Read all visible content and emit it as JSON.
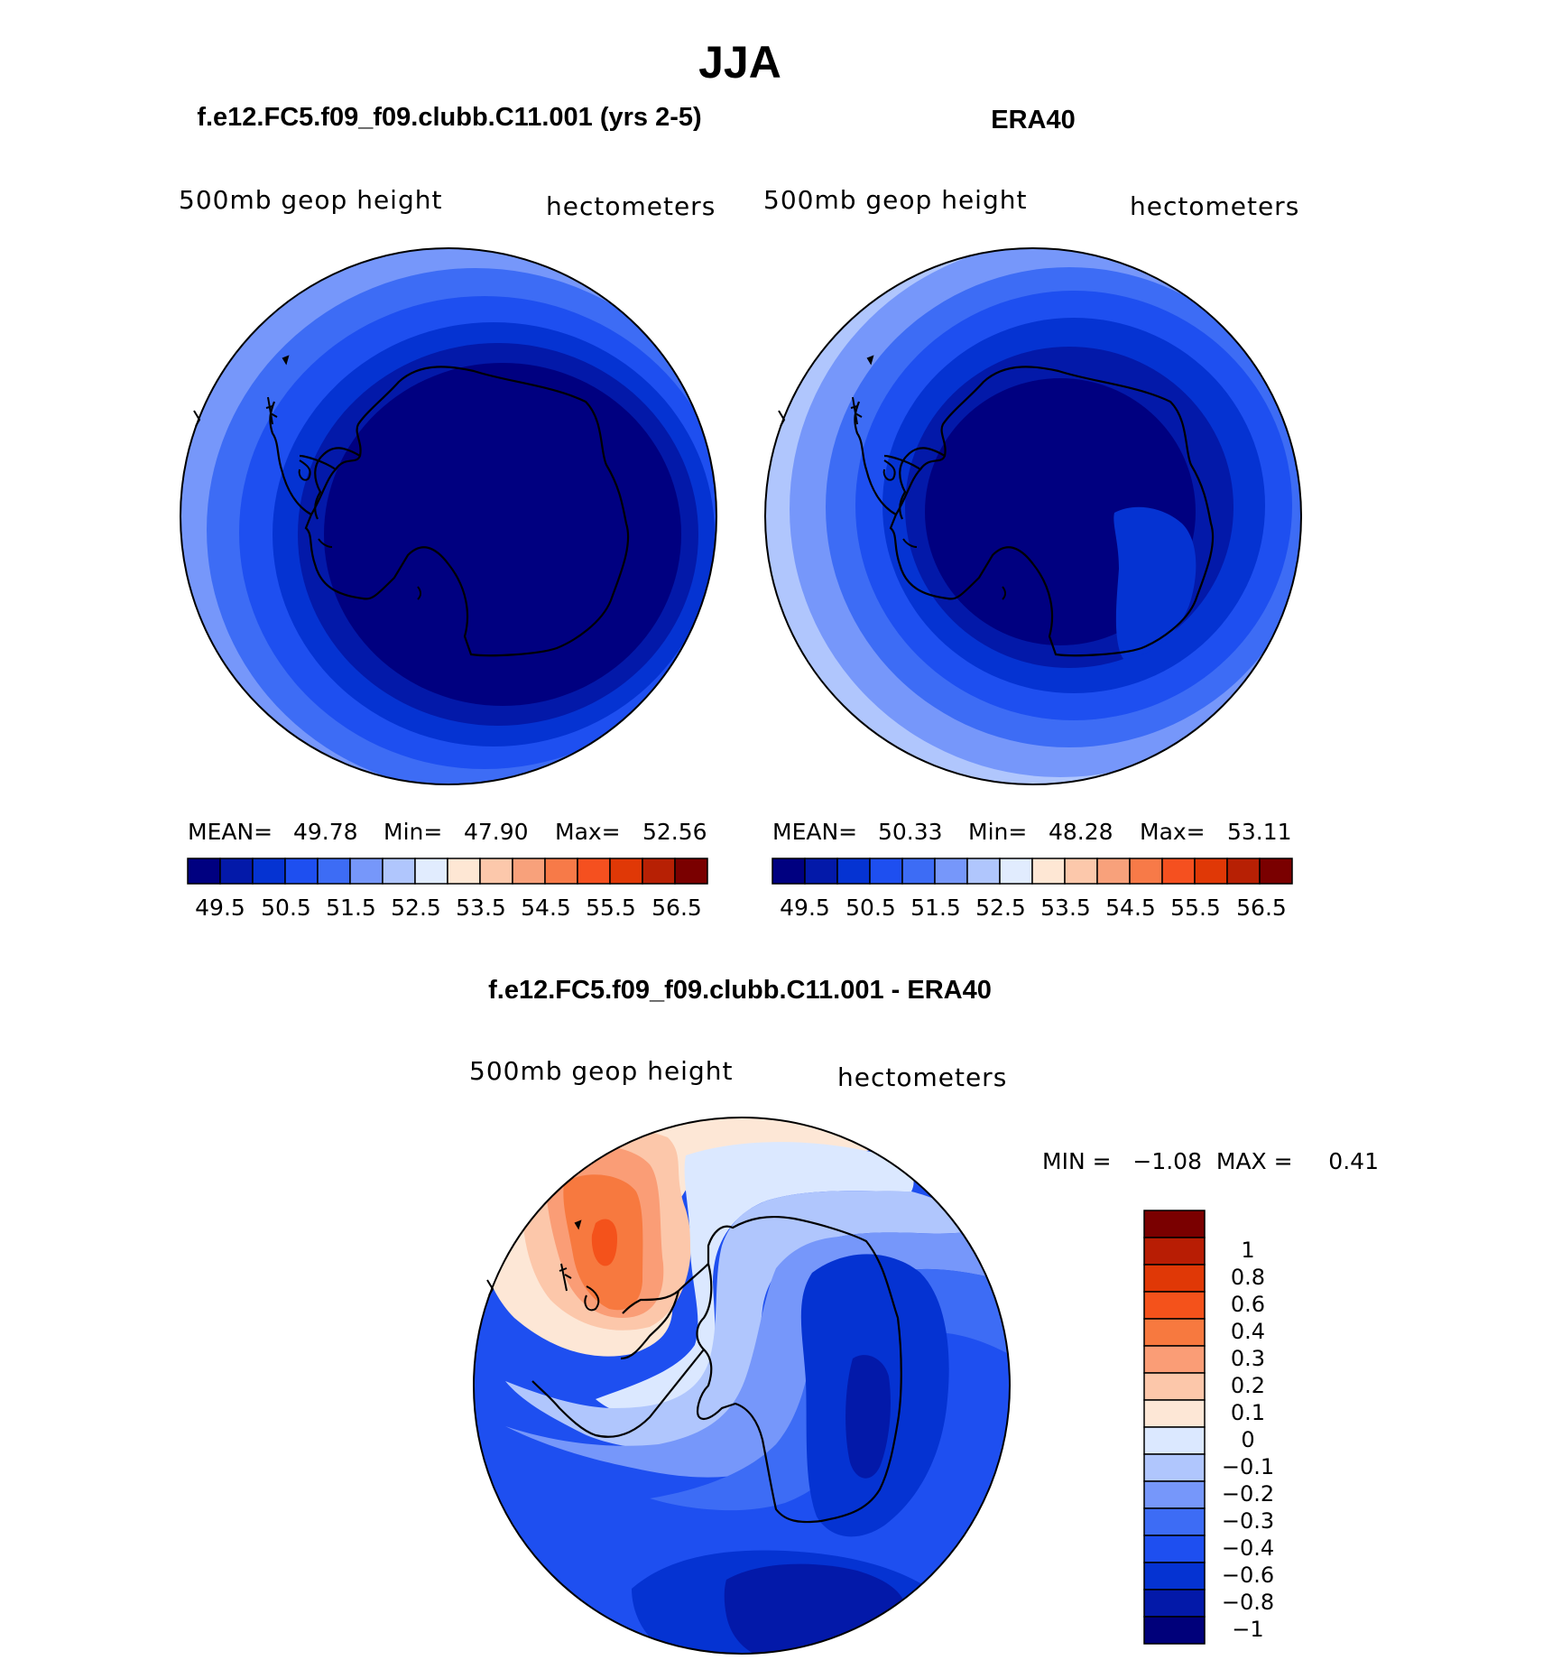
{
  "title": "JJA",
  "colors": {
    "abs": [
      "#000080",
      "#0319a9",
      "#0533d2",
      "#1e4ff0",
      "#3d6cf5",
      "#7697fa",
      "#b0c6fd",
      "#e1ecfe",
      "#fee7d4",
      "#fcc8ab",
      "#f8a17b",
      "#f77a48",
      "#f5501f",
      "#e03806",
      "#b72004",
      "#7a0000"
    ],
    "diff": [
      "#00007a",
      "#0319a9",
      "#0533d2",
      "#1e4ff0",
      "#3d6cf5",
      "#7697fa",
      "#b0c6fd",
      "#dbe8ff",
      "#fde7d6",
      "#fcc7aa",
      "#fa9d76",
      "#f7793f",
      "#f4521b",
      "#e03806",
      "#b81d04",
      "#7a0000"
    ]
  },
  "panels": [
    {
      "title": "f.e12.FC5.f09_f09.clubb.C11.001 (yrs 2-5)",
      "left_label": "500mb  geop  height",
      "right_label": "hectometers",
      "stats": {
        "mean_label": "MEAN=",
        "mean": "49.78",
        "min_label": "Min=",
        "min": "47.90",
        "max_label": "Max=",
        "max": "52.56"
      },
      "colorbar_labels": [
        "49.5",
        "50.5",
        "51.5",
        "52.5",
        "53.5",
        "54.5",
        "55.5",
        "56.5"
      ]
    },
    {
      "title": "ERA40",
      "left_label": "500mb  geop  height",
      "right_label": "hectometers",
      "stats": {
        "mean_label": "MEAN=",
        "mean": "50.33",
        "min_label": "Min=",
        "min": "48.28",
        "max_label": "Max=",
        "max": "53.11"
      },
      "colorbar_labels": [
        "49.5",
        "50.5",
        "51.5",
        "52.5",
        "53.5",
        "54.5",
        "55.5",
        "56.5"
      ]
    }
  ],
  "diff_panel": {
    "title": "f.e12.FC5.f09_f09.clubb.C11.001 - ERA40",
    "left_label": "500mb  geop  height",
    "right_label": "hectometers",
    "stats_text": "MIN =   −1.08  MAX =     0.41",
    "colorbar_labels": [
      "1",
      "0.8",
      "0.6",
      "0.4",
      "0.3",
      "0.2",
      "0.1",
      "0",
      "−0.1",
      "−0.2",
      "−0.3",
      "−0.4",
      "−0.6",
      "−0.8",
      "−1"
    ]
  }
}
